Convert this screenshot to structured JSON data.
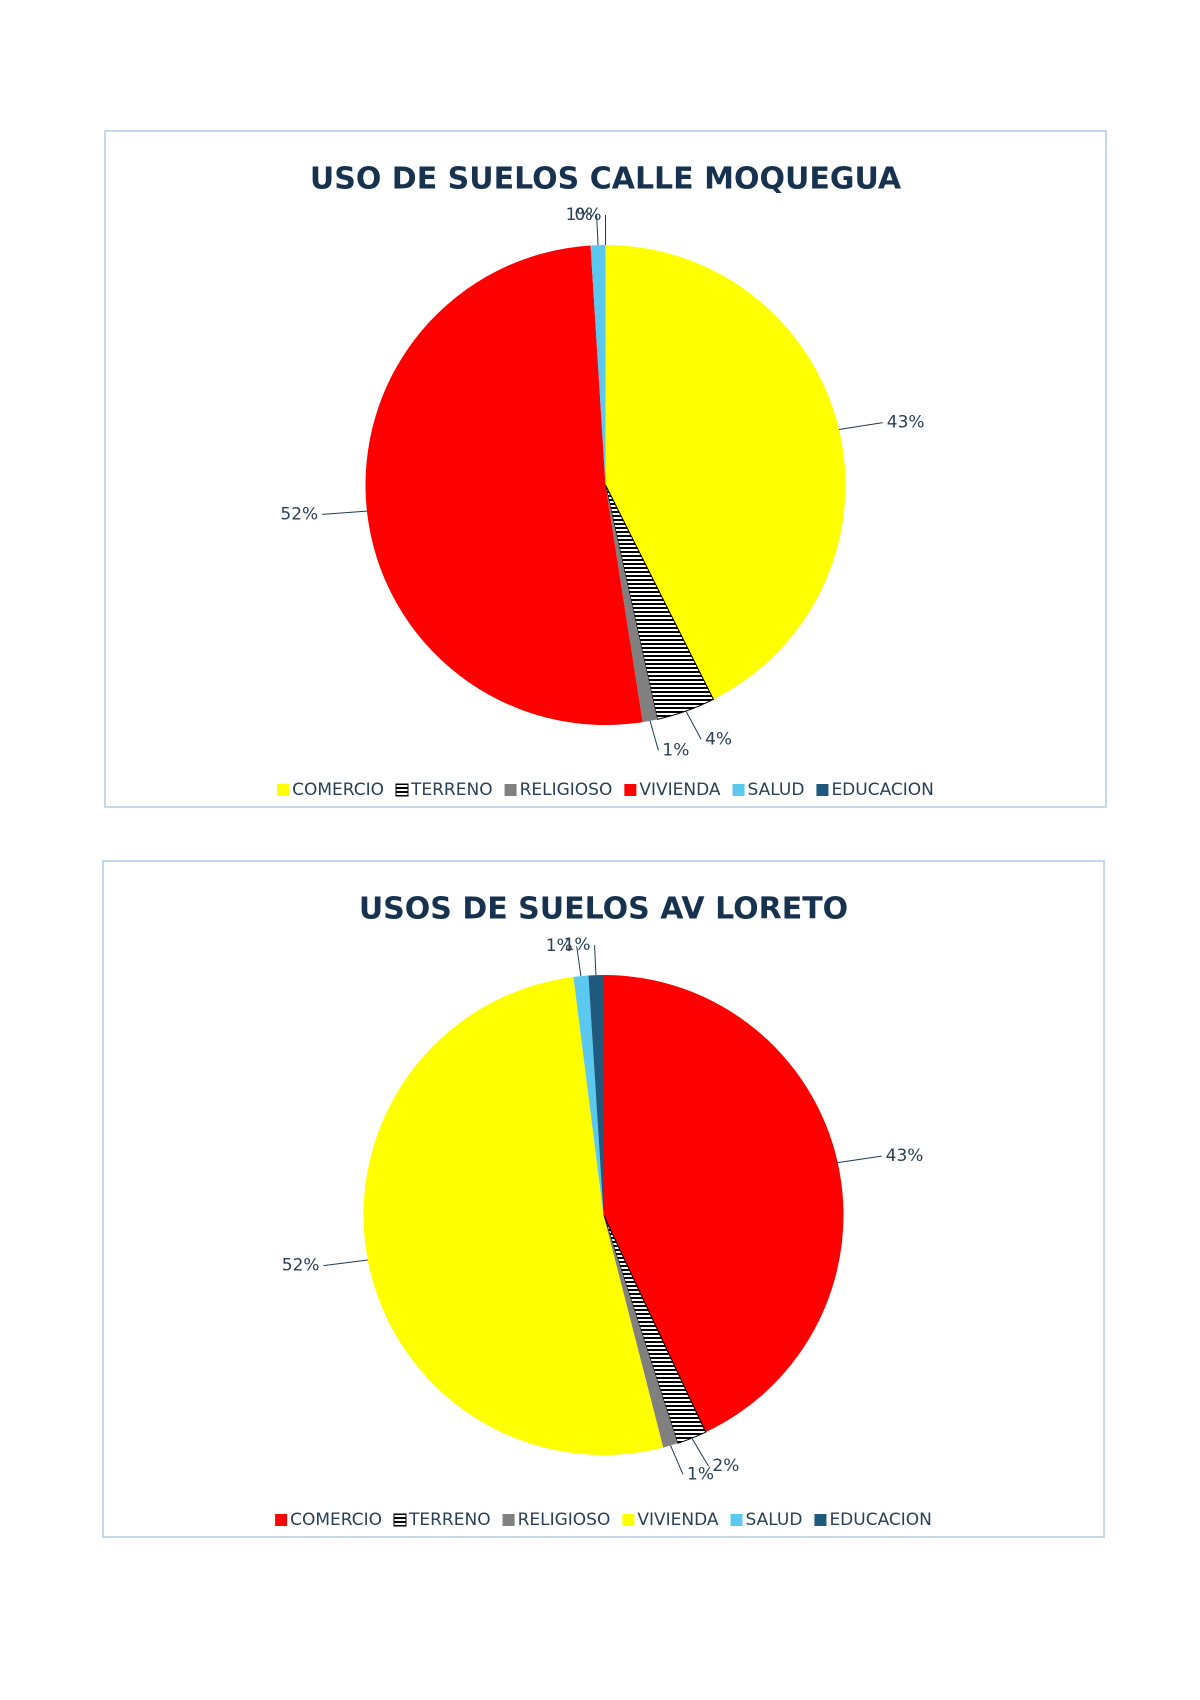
{
  "chart_data": [
    {
      "type": "pie",
      "title": "USO DE SUELOS CALLE MOQUEGUA",
      "categories": [
        "COMERCIO",
        "TERRENO",
        "RELIGIOSO",
        "VIVIENDA",
        "SALUD",
        "EDUCACION"
      ],
      "values": [
        43,
        4,
        1,
        52,
        1,
        0
      ],
      "value_labels": [
        "43%",
        "4%",
        "1%",
        "52%",
        "1%",
        "0%"
      ],
      "colors": [
        "#ffff00",
        "#000000",
        "#808080",
        "#ff0000",
        "#5bc8f0",
        "#1f5a7e"
      ],
      "patterns": [
        null,
        "horizontal-lines",
        null,
        null,
        null,
        null
      ],
      "legend": "bottom"
    },
    {
      "type": "pie",
      "title": "USOS DE SUELOS AV LORETO",
      "categories": [
        "COMERCIO",
        "TERRENO",
        "RELIGIOSO",
        "VIVIENDA",
        "SALUD",
        "EDUCACION"
      ],
      "values": [
        43,
        2,
        1,
        52,
        1,
        1
      ],
      "value_labels": [
        "43%",
        "2%",
        "1%",
        "52%",
        "1%",
        "1%"
      ],
      "colors": [
        "#ff0000",
        "#000000",
        "#808080",
        "#ffff00",
        "#5bc8f0",
        "#1f5a7e"
      ],
      "patterns": [
        null,
        "horizontal-lines",
        null,
        null,
        null,
        null
      ],
      "legend": "bottom"
    }
  ]
}
